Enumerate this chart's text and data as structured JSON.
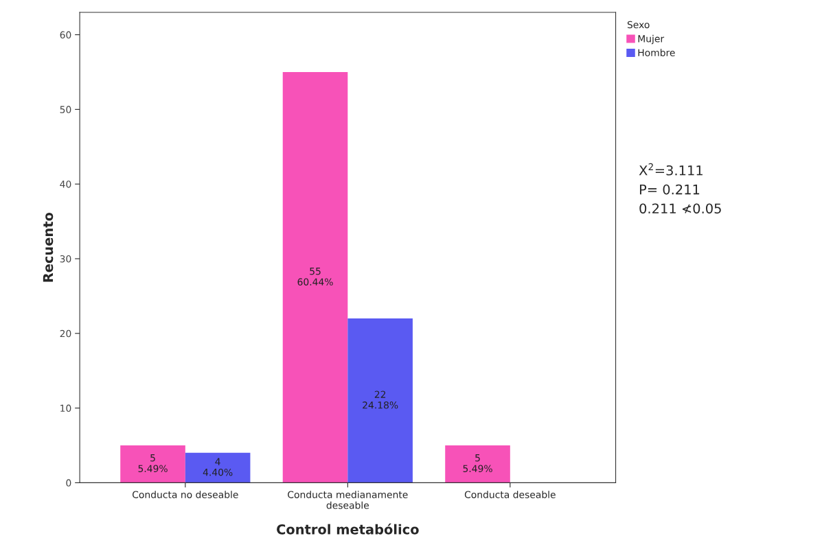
{
  "chart_data": {
    "type": "bar",
    "xlabel": "Control metabólico",
    "ylabel": "Recuento",
    "legend_title": "Sexo",
    "categories": [
      "Conducta no deseable",
      "Conducta medianamente\ndeseable",
      "Conducta deseable"
    ],
    "series": [
      {
        "name": "Mujer",
        "color": "#f752b8",
        "values": [
          5,
          55,
          5
        ],
        "value_labels": [
          "5\n5.49%",
          "55\n60.44%",
          "5\n5.49%"
        ]
      },
      {
        "name": "Hombre",
        "color": "#5a5af2",
        "values": [
          4,
          22,
          0
        ],
        "value_labels": [
          "4\n4.40%",
          "22\n24.18%",
          null
        ]
      }
    ],
    "ylim": [
      0,
      63
    ],
    "yticks": [
      0,
      10,
      20,
      30,
      40,
      50,
      60
    ],
    "grid": false,
    "legend": "top right",
    "annotations": [
      "X$^{2}$=3.111\nP= 0.211\n0.211 ≮0.05"
    ]
  }
}
